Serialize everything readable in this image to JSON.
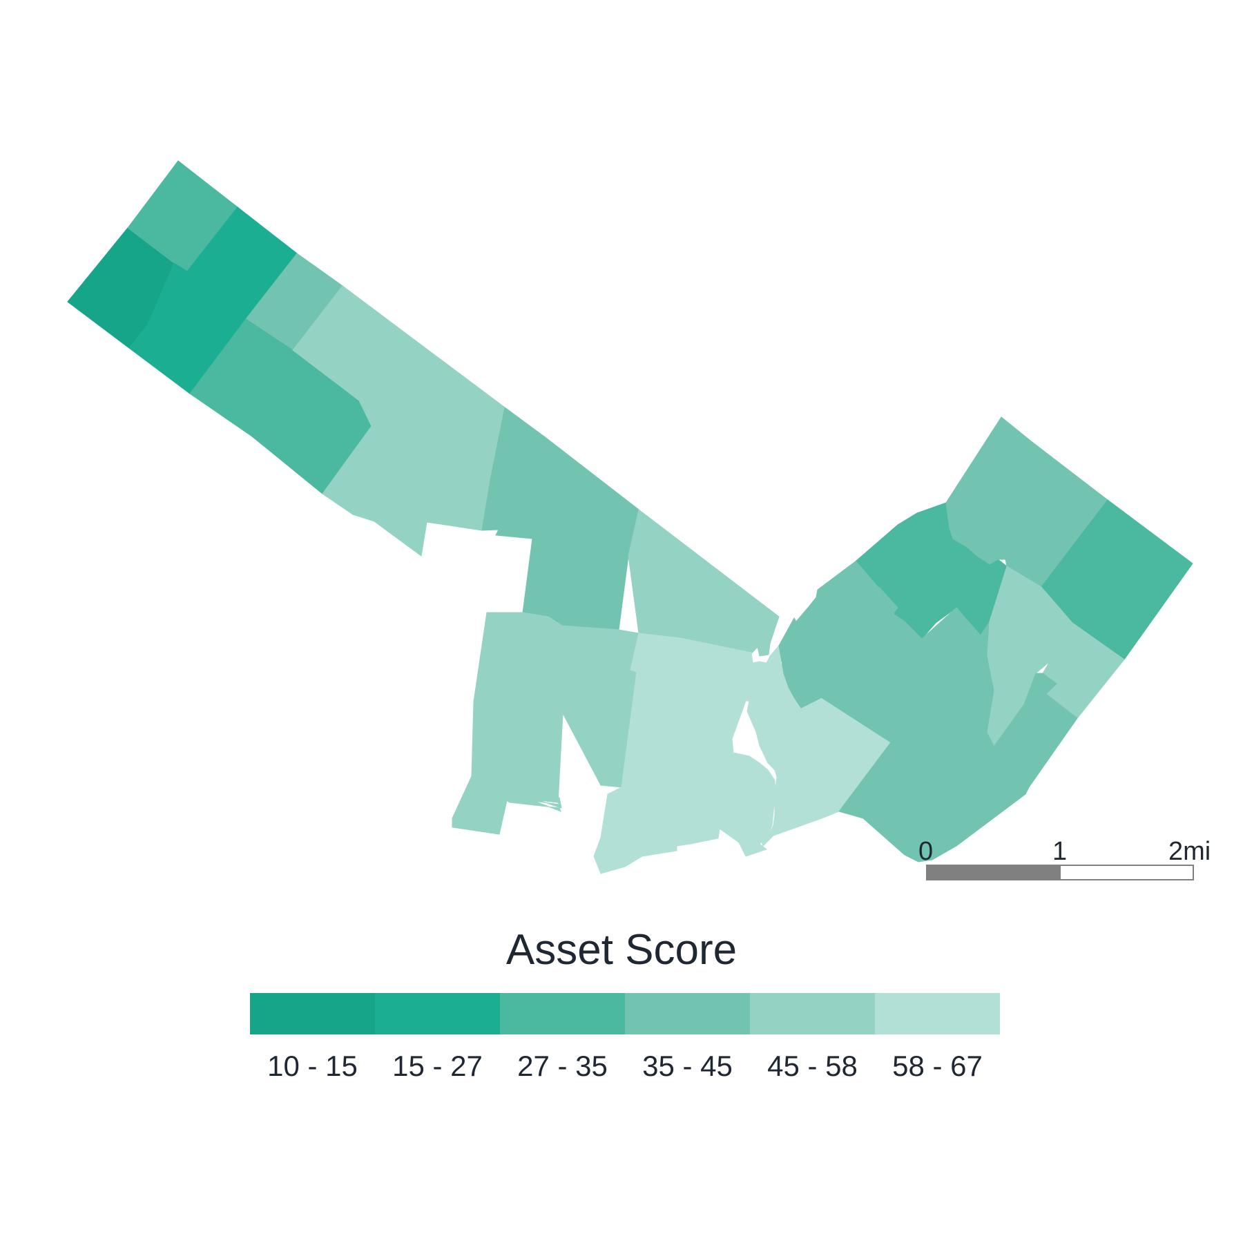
{
  "legend": {
    "title": "Asset Score",
    "classes": [
      {
        "label": "10 - 15",
        "color": "#16a589"
      },
      {
        "label": "15 - 27",
        "color": "#1cae93"
      },
      {
        "label": "27 - 35",
        "color": "#4bb8a0"
      },
      {
        "label": "35 - 45",
        "color": "#72c4b1"
      },
      {
        "label": "45 - 58",
        "color": "#94d2c3"
      },
      {
        "label": "58 - 67",
        "color": "#b3e0d6"
      }
    ]
  },
  "scale_bar": {
    "labels": [
      "0",
      "1",
      "2mi"
    ],
    "fill_color": "#808080"
  },
  "regions": [
    {
      "id": "r01",
      "class": 0
    },
    {
      "id": "r02",
      "class": 2
    },
    {
      "id": "r03",
      "class": 1
    },
    {
      "id": "r04",
      "class": 1
    },
    {
      "id": "r05",
      "class": 3
    },
    {
      "id": "r06",
      "class": 2
    },
    {
      "id": "r07",
      "class": 2
    },
    {
      "id": "r08",
      "class": 4
    },
    {
      "id": "r09",
      "class": 4
    },
    {
      "id": "r10",
      "class": 4
    },
    {
      "id": "r11",
      "class": 4
    },
    {
      "id": "r12",
      "class": 3
    },
    {
      "id": "r13",
      "class": 3
    },
    {
      "id": "r14",
      "class": 3
    },
    {
      "id": "r15",
      "class": 4
    },
    {
      "id": "r16",
      "class": 4
    },
    {
      "id": "r17",
      "class": 4
    },
    {
      "id": "r18",
      "class": 4
    },
    {
      "id": "r19",
      "class": 4
    },
    {
      "id": "r20",
      "class": 4
    },
    {
      "id": "r21",
      "class": 5
    },
    {
      "id": "r22",
      "class": 5
    },
    {
      "id": "r23",
      "class": 4
    },
    {
      "id": "r24",
      "class": 4
    },
    {
      "id": "r25",
      "class": 5
    },
    {
      "id": "r26",
      "class": 3
    },
    {
      "id": "r27",
      "class": 2
    },
    {
      "id": "r28",
      "class": 3
    },
    {
      "id": "r29",
      "class": 3
    },
    {
      "id": "r30",
      "class": 3
    },
    {
      "id": "r31",
      "class": 2
    },
    {
      "id": "r32",
      "class": 3
    },
    {
      "id": "r33",
      "class": 4
    },
    {
      "id": "r34",
      "class": 4
    },
    {
      "id": "r35",
      "class": 3
    },
    {
      "id": "r36",
      "class": 3
    }
  ]
}
